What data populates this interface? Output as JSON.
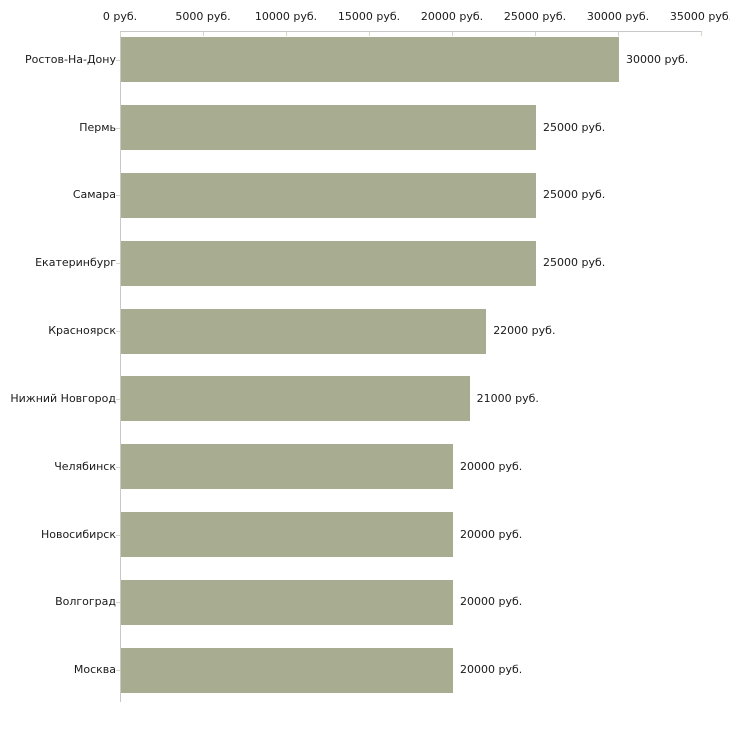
{
  "chart_data": {
    "type": "bar",
    "orientation": "horizontal",
    "title": "",
    "xlabel": "",
    "ylabel": "",
    "unit": "руб.",
    "categories": [
      "Ростов-На-Дону",
      "Пермь",
      "Самара",
      "Екатеринбург",
      "Красноярск",
      "Нижний Новгород",
      "Челябинск",
      "Новосибирск",
      "Волгоград",
      "Москва"
    ],
    "values": [
      30000,
      25000,
      25000,
      25000,
      22000,
      21000,
      20000,
      20000,
      20000,
      20000
    ],
    "value_labels": [
      "30000 руб.",
      "25000 руб.",
      "25000 руб.",
      "25000 руб.",
      "22000 руб.",
      "21000 руб.",
      "20000 руб.",
      "20000 руб.",
      "20000 руб.",
      "20000 руб."
    ],
    "x_tick_values": [
      0,
      5000,
      10000,
      15000,
      20000,
      25000,
      30000,
      35000
    ],
    "x_tick_labels": [
      "0 руб.",
      "5000 руб.",
      "10000 руб.",
      "15000 руб.",
      "20000 руб.",
      "25000 руб.",
      "30000 руб.",
      "35000 руб."
    ],
    "xlim": [
      0,
      35000
    ],
    "grid": false,
    "legend": null,
    "axis_position": "top",
    "colors": {
      "bar": "#a8ad92",
      "axis_line": "#c9c9c9",
      "tick": "#d4d8c2",
      "text": "#1a1a1a",
      "background": "#ffffff"
    }
  }
}
